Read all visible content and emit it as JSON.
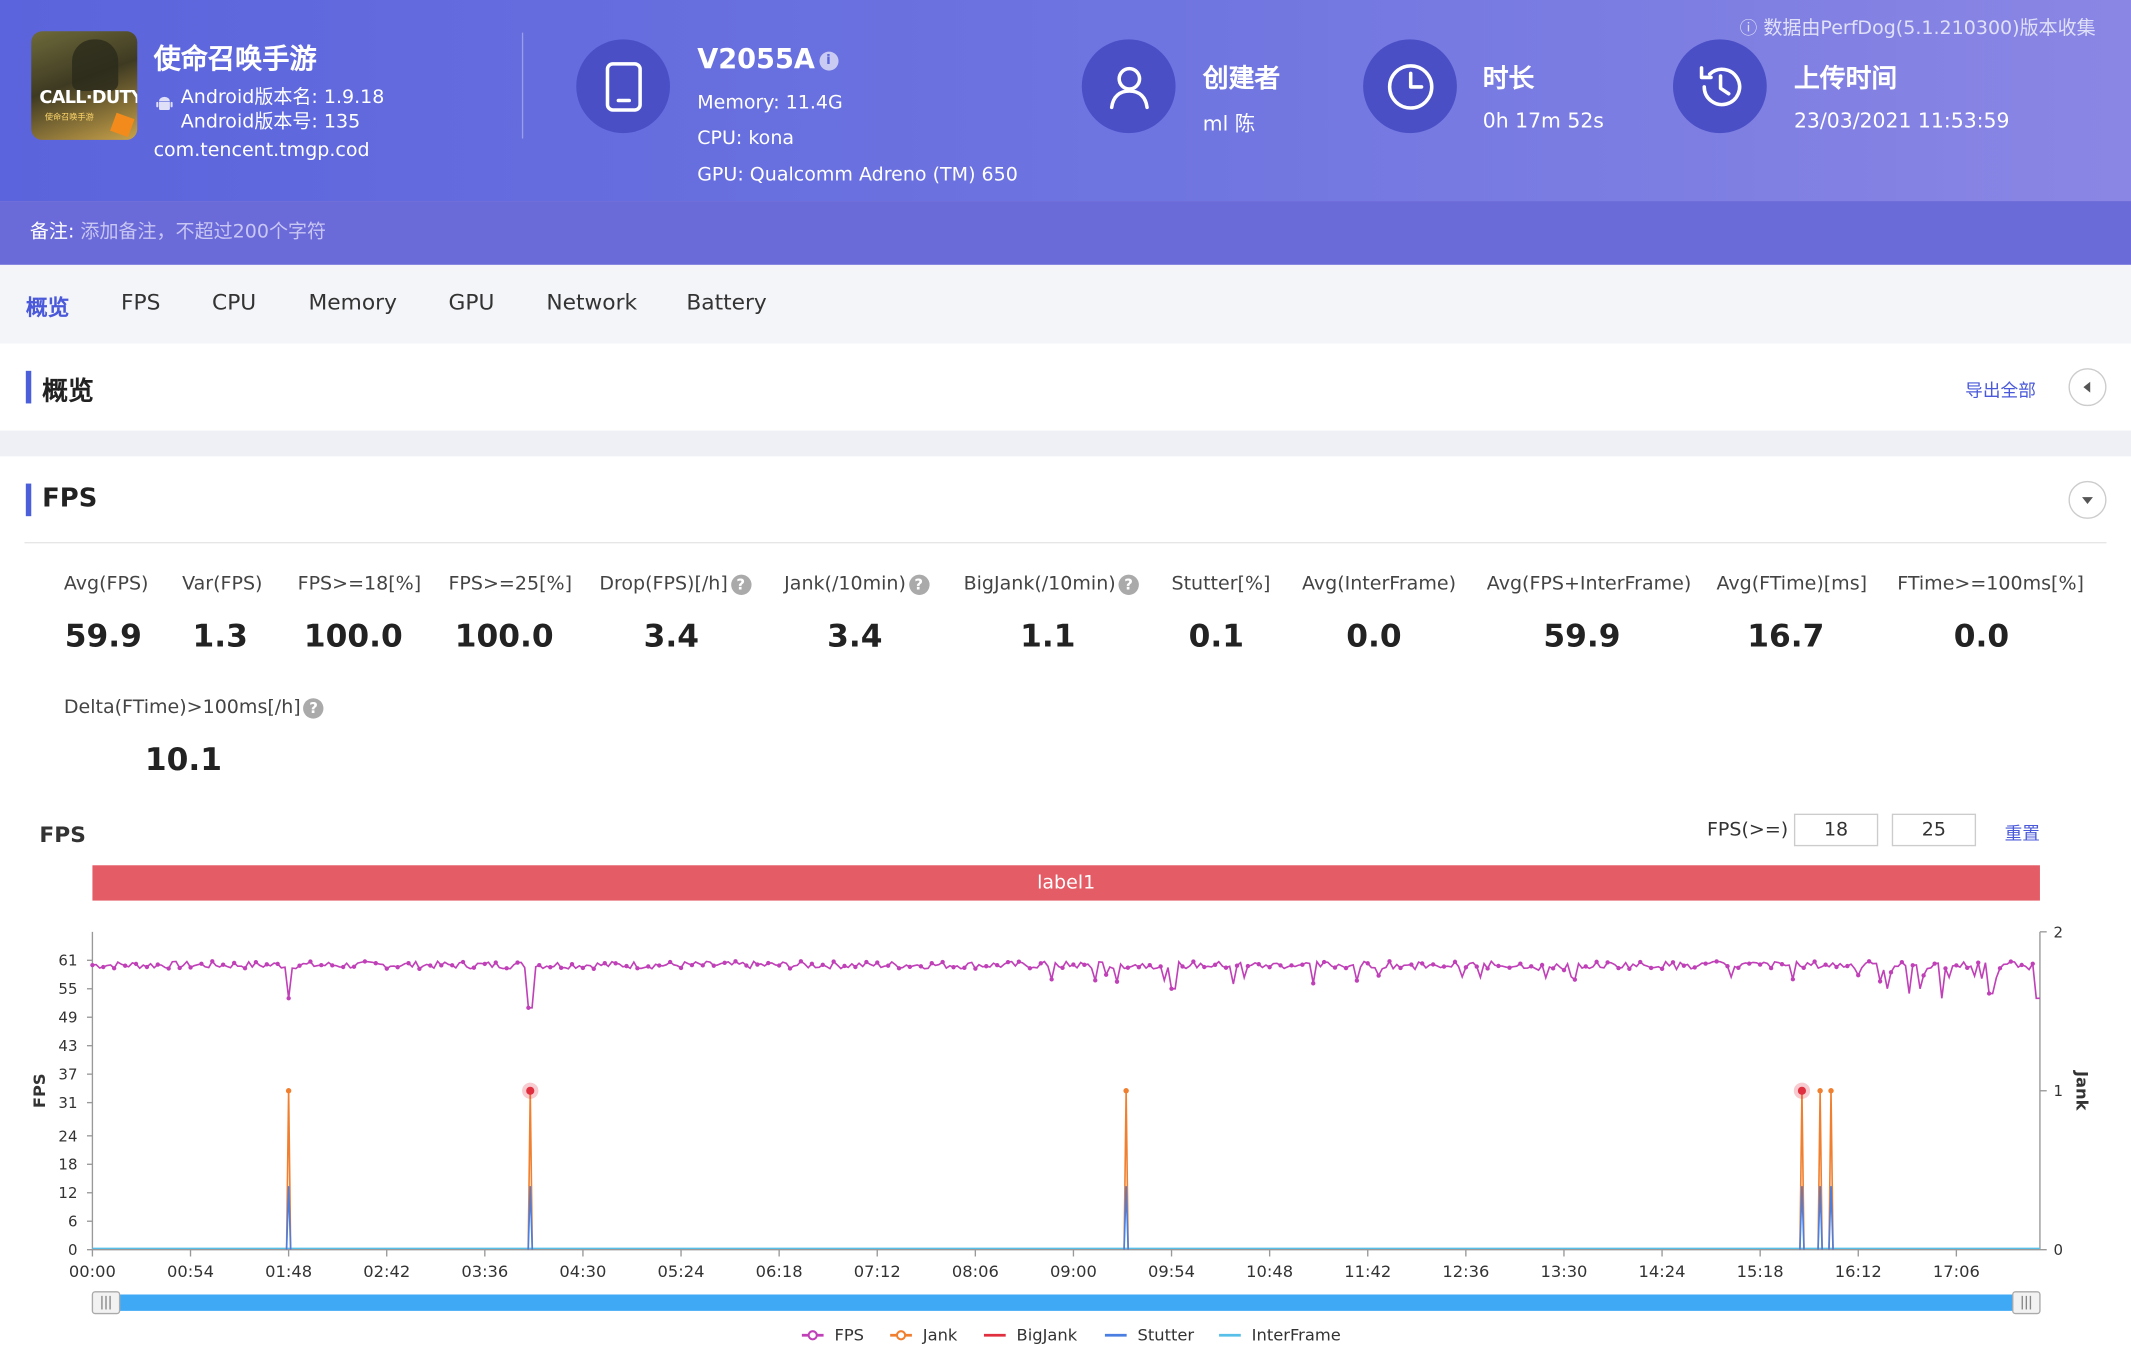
{
  "header": {
    "app_name": "使命召唤手游",
    "icon_text_main": "CALL·DUTY",
    "icon_text_sub": "使命召唤手游",
    "android_version_name": "Android版本名: 1.9.18",
    "android_version_code": "Android版本号: 135",
    "package": "com.tencent.tmgp.cod",
    "device_model": "V2055A",
    "memory": "Memory: 11.4G",
    "cpu": "CPU: kona",
    "gpu": "GPU: Qualcomm Adreno (TM) 650",
    "creator_label": "创建者",
    "creator_value": "ml 陈",
    "duration_label": "时长",
    "duration_value": "0h 17m 52s",
    "upload_label": "上传时间",
    "upload_value": "23/03/2021 11:53:59",
    "source_note": "数据由PerfDog(5.1.210300)版本收集"
  },
  "note": {
    "label": "备注:",
    "placeholder": "添加备注，不超过200个字符"
  },
  "tabs": [
    "概览",
    "FPS",
    "CPU",
    "Memory",
    "GPU",
    "Network",
    "Battery"
  ],
  "overview": {
    "title": "概览",
    "export_label": "导出全部"
  },
  "fps_section": {
    "title": "FPS",
    "stats": [
      {
        "label": "Avg(FPS)",
        "value": "59.9"
      },
      {
        "label": "Var(FPS)",
        "value": "1.3"
      },
      {
        "label": "FPS>=18[%]",
        "value": "100.0"
      },
      {
        "label": "FPS>=25[%]",
        "value": "100.0"
      },
      {
        "label": "Drop(FPS)[/h]",
        "value": "3.4"
      },
      {
        "label": "Jank(/10min)",
        "value": "3.4"
      },
      {
        "label": "BigJank(/10min)",
        "value": "1.1"
      },
      {
        "label": "Stutter[%]",
        "value": "0.1"
      },
      {
        "label": "Avg(InterFrame)",
        "value": "0.0"
      },
      {
        "label": "Avg(FPS+InterFrame)",
        "value": "59.9"
      },
      {
        "label": "Avg(FTime)[ms]",
        "value": "16.7"
      },
      {
        "label": "FTime>=100ms[%]",
        "value": "0.0"
      },
      {
        "label": "Delta(FTime)>100ms[/h]",
        "value": "10.1"
      }
    ],
    "chart_title": "FPS",
    "threshold_label": "FPS(>=)",
    "threshold_1": "18",
    "threshold_2": "25",
    "reset_label": "重置",
    "label_bar": "label1"
  },
  "colors": {
    "fps": "#c040b8",
    "jank": "#f08030",
    "bigjank": "#e03040",
    "stutter": "#4a7ee0",
    "interframe": "#58c0e8",
    "label_bar": "#e45c66",
    "accent": "#4a59d9"
  },
  "chart_data": {
    "type": "line",
    "ylabel": "FPS",
    "y2label": "Jank",
    "y_ticks": [
      0,
      6,
      12,
      18,
      24,
      31,
      37,
      43,
      49,
      55,
      61
    ],
    "y2_ticks": [
      0,
      1,
      2
    ],
    "ylim": [
      0,
      67
    ],
    "y2lim": [
      0,
      2
    ],
    "x_ticks": [
      "00:00",
      "00:54",
      "01:48",
      "02:42",
      "03:36",
      "04:30",
      "05:24",
      "06:18",
      "07:12",
      "08:06",
      "09:00",
      "09:54",
      "10:48",
      "11:42",
      "12:36",
      "13:30",
      "14:24",
      "15:18",
      "16:12",
      "17:06"
    ],
    "x_range_seconds": [
      0,
      1072
    ],
    "fps_baseline": 60,
    "fps_dips": [
      {
        "t": 108,
        "fps": 53
      },
      {
        "t": 241,
        "fps": 51
      },
      {
        "t": 595,
        "fps": 55
      },
      {
        "t": 628,
        "fps": 56
      },
      {
        "t": 988,
        "fps": 55
      },
      {
        "t": 1000,
        "fps": 54
      },
      {
        "t": 1006,
        "fps": 55
      },
      {
        "t": 1018,
        "fps": 53
      },
      {
        "t": 1045,
        "fps": 54
      },
      {
        "t": 1071,
        "fps": 53
      }
    ],
    "jank_events": [
      {
        "t": 108,
        "jank": 1,
        "bigjank": false
      },
      {
        "t": 241,
        "jank": 1,
        "bigjank": true
      },
      {
        "t": 569,
        "jank": 1,
        "bigjank": false
      },
      {
        "t": 941,
        "jank": 1,
        "bigjank": true
      },
      {
        "t": 951,
        "jank": 1,
        "bigjank": false
      },
      {
        "t": 957,
        "jank": 1,
        "bigjank": false
      }
    ],
    "series": [
      {
        "name": "FPS"
      },
      {
        "name": "Jank"
      },
      {
        "name": "BigJank"
      },
      {
        "name": "Stutter"
      },
      {
        "name": "InterFrame"
      }
    ],
    "legend_position": "bottom"
  }
}
